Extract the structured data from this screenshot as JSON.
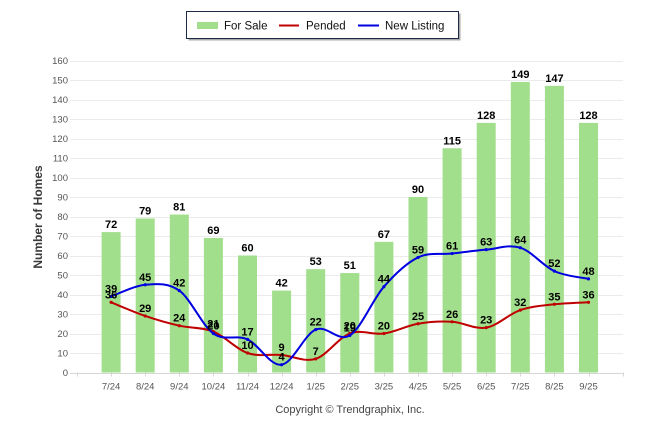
{
  "chart_data": {
    "type": "bar",
    "title": "",
    "xlabel": "",
    "ylabel": "Number of Homes",
    "ylim": [
      0,
      160
    ],
    "yticks": [
      0,
      10,
      20,
      30,
      40,
      50,
      60,
      70,
      80,
      90,
      100,
      110,
      120,
      130,
      140,
      150,
      160
    ],
    "grid": true,
    "legend": "top-center",
    "categories": [
      "7/24",
      "8/24",
      "9/24",
      "10/24",
      "11/24",
      "12/24",
      "1/25",
      "2/25",
      "3/25",
      "4/25",
      "5/25",
      "6/25",
      "7/25",
      "8/25",
      "9/25"
    ],
    "series": [
      {
        "name": "For Sale",
        "type": "bar",
        "color": "#a2df8c",
        "values": [
          72,
          79,
          81,
          69,
          60,
          42,
          53,
          51,
          67,
          90,
          115,
          128,
          149,
          147,
          128
        ]
      },
      {
        "name": "Pended",
        "type": "line",
        "color": "#c00000",
        "values": [
          36,
          29,
          24,
          21,
          10,
          9,
          7,
          20,
          20,
          25,
          26,
          23,
          32,
          35,
          36
        ]
      },
      {
        "name": "New Listing",
        "type": "line",
        "color": "#0000e0",
        "values": [
          39,
          45,
          42,
          20,
          17,
          4,
          22,
          19,
          44,
          59,
          61,
          63,
          64,
          52,
          48
        ]
      }
    ]
  },
  "footer": {
    "copyright": "Copyright © Trendgraphix, Inc."
  }
}
